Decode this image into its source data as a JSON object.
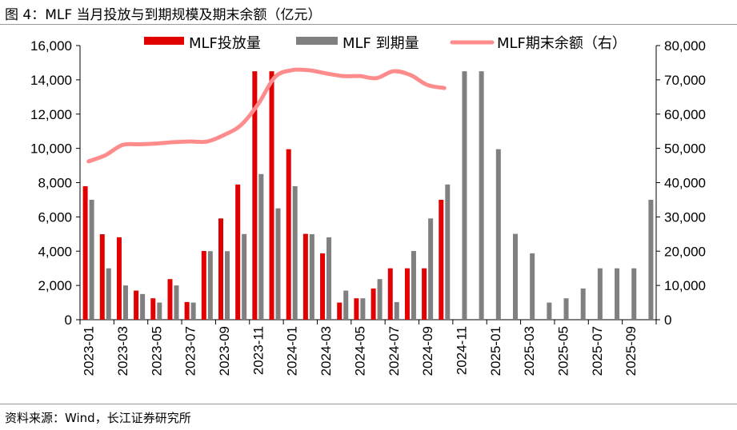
{
  "title": "图 4：MLF 当月投放与到期规模及期末余额（亿元）",
  "source": "资料来源：Wind，长江证券研究所",
  "chart_data": {
    "type": "bar",
    "title": "图 4：MLF 当月投放与到期规模及期末余额（亿元）",
    "categories": [
      "2023-01",
      "2023-02",
      "2023-03",
      "2023-04",
      "2023-05",
      "2023-06",
      "2023-07",
      "2023-08",
      "2023-09",
      "2023-10",
      "2023-11",
      "2023-12",
      "2024-01",
      "2024-02",
      "2024-03",
      "2024-04",
      "2024-05",
      "2024-06",
      "2024-07",
      "2024-08",
      "2024-09",
      "2024-10",
      "2024-11",
      "2024-12",
      "2025-01",
      "2025-02",
      "2025-03",
      "2025-04",
      "2025-05",
      "2025-06",
      "2025-07",
      "2025-08",
      "2025-09",
      "2025-10"
    ],
    "tick_labels": [
      "2023-01",
      "2023-03",
      "2023-05",
      "2023-07",
      "2023-09",
      "2023-11",
      "2024-01",
      "2024-03",
      "2024-05",
      "2024-07",
      "2024-09",
      "2024-11",
      "2025-01",
      "2025-03",
      "2025-05",
      "2025-07",
      "2025-09"
    ],
    "left_axis": {
      "ylim": [
        0,
        16000
      ],
      "ticks": [
        "0",
        "2,000",
        "4,000",
        "6,000",
        "8,000",
        "10,000",
        "12,000",
        "14,000",
        "16,000"
      ]
    },
    "right_axis": {
      "ylim": [
        0,
        80000
      ],
      "ticks": [
        "0",
        "10,000",
        "20,000",
        "30,000",
        "40,000",
        "50,000",
        "60,000",
        "70,000",
        "80,000"
      ]
    },
    "legend_placement": "top",
    "grid": false,
    "series": [
      {
        "name": "MLF投放量",
        "type": "bar",
        "axis": "left",
        "color": "#E00000",
        "values": [
          7790,
          4990,
          4810,
          1700,
          1250,
          2370,
          1030,
          4010,
          5910,
          7890,
          14500,
          14500,
          9950,
          5010,
          3870,
          1000,
          1250,
          1820,
          3000,
          3000,
          3000,
          7000,
          null,
          null,
          null,
          null,
          null,
          null,
          null,
          null,
          null,
          null,
          null,
          null
        ]
      },
      {
        "name": "MLF 到期量",
        "type": "bar",
        "axis": "left",
        "color": "#808080",
        "values": [
          7000,
          3000,
          2000,
          1500,
          1000,
          2000,
          1000,
          4000,
          4000,
          5000,
          8500,
          6500,
          7790,
          4990,
          4810,
          1700,
          1250,
          2370,
          1030,
          4010,
          5910,
          7890,
          14500,
          14500,
          9950,
          5010,
          3870,
          1000,
          1250,
          1820,
          3000,
          3000,
          3000,
          7000
        ]
      },
      {
        "name": "MLF期末余额（右）",
        "type": "line",
        "axis": "right",
        "color": "#FF8C8C",
        "values": [
          46200,
          48000,
          51000,
          51200,
          51400,
          51800,
          52000,
          52000,
          53900,
          56800,
          62800,
          70800,
          72800,
          72800,
          71900,
          71100,
          71100,
          70500,
          72500,
          71400,
          68500,
          67600,
          null,
          null,
          null,
          null,
          null,
          null,
          null,
          null,
          null,
          null,
          null,
          null
        ]
      }
    ]
  }
}
